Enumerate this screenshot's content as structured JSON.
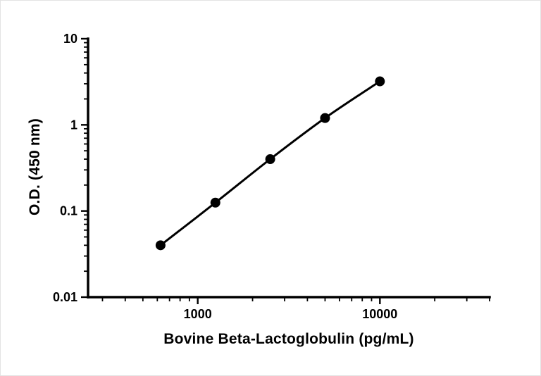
{
  "chart_data": {
    "type": "scatter",
    "title": "",
    "xlabel": "Bovine Beta-Lactoglobulin (pg/mL)",
    "ylabel": "O.D. (450 nm)",
    "xscale": "log",
    "yscale": "log",
    "xlim": [
      250,
      40000
    ],
    "ylim": [
      0.01,
      10
    ],
    "grid": false,
    "legend": "none",
    "line": true,
    "marker": "circle",
    "color": "#000000",
    "background": "#ffffff",
    "x": [
      625,
      1250,
      2500,
      5000,
      10000
    ],
    "y": [
      0.04,
      0.125,
      0.4,
      1.2,
      3.2
    ],
    "x_major_ticks": [
      {
        "value": 1000,
        "label": "1000"
      },
      {
        "value": 10000,
        "label": "10000"
      }
    ],
    "y_major_ticks": [
      {
        "value": 0.01,
        "label": "0.01"
      },
      {
        "value": 0.1,
        "label": "0.1"
      },
      {
        "value": 1,
        "label": "1"
      },
      {
        "value": 10,
        "label": "10"
      }
    ]
  }
}
